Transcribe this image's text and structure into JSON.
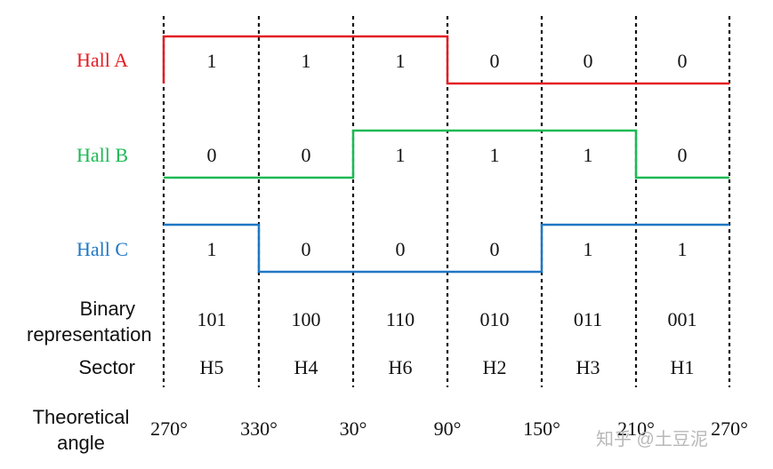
{
  "signals": [
    {
      "label": "Hall A",
      "color": "#e31c23",
      "bits": [
        "1",
        "1",
        "1",
        "0",
        "0",
        "0"
      ]
    },
    {
      "label": "Hall B",
      "color": "#1db954",
      "bits": [
        "0",
        "0",
        "1",
        "1",
        "1",
        "0"
      ]
    },
    {
      "label": "Hall C",
      "color": "#1f77c4",
      "bits": [
        "1",
        "0",
        "0",
        "0",
        "1",
        "1"
      ]
    }
  ],
  "binary": {
    "label": "Binary representation",
    "values": [
      "101",
      "100",
      "110",
      "010",
      "011",
      "001"
    ]
  },
  "sector": {
    "label": "Sector",
    "values": [
      "H5",
      "H4",
      "H6",
      "H2",
      "H3",
      "H1"
    ]
  },
  "angle": {
    "label": "Theoretical angle",
    "values": [
      "270°",
      "330°",
      "30°",
      "90°",
      "150°",
      "210°",
      "270°"
    ]
  },
  "watermark": "知乎 @土豆泥"
}
